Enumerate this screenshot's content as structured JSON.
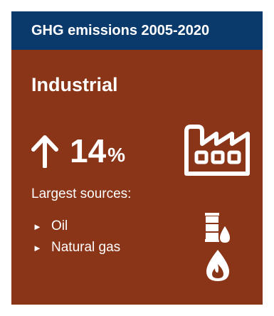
{
  "header": {
    "title": "GHG emissions 2005-2020"
  },
  "sector": {
    "name": "Industrial"
  },
  "change": {
    "direction": "up",
    "value": "14",
    "unit": "%",
    "icon": "up-arrow-icon"
  },
  "sources": {
    "label": "Largest sources:",
    "items": [
      {
        "label": "Oil",
        "icon": "oil-barrel-icon"
      },
      {
        "label": "Natural gas",
        "icon": "gas-flame-drop-icon"
      }
    ]
  },
  "icons": {
    "sector_icon": "factory-icon"
  },
  "colors": {
    "header_bg": "#0a3a6b",
    "card_bg": "#8a3418",
    "text": "#ffffff"
  }
}
